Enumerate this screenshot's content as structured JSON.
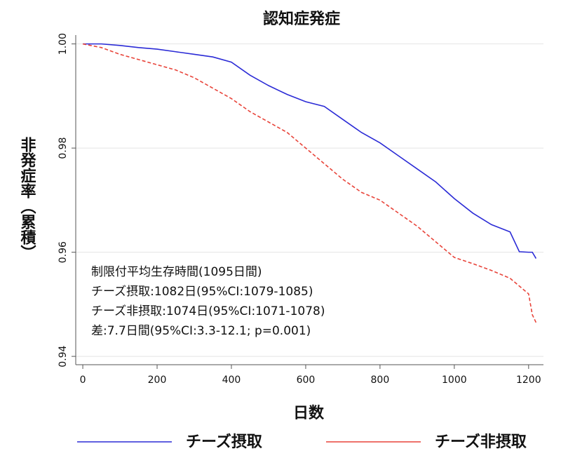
{
  "chart_data": {
    "type": "line",
    "title": "認知症発症",
    "x_label": "日数",
    "y_label": "非発症率（累積）",
    "x": [
      0,
      50,
      100,
      150,
      200,
      250,
      300,
      350,
      400,
      450,
      500,
      550,
      600,
      650,
      700,
      750,
      800,
      850,
      900,
      950,
      1000,
      1050,
      1100,
      1150,
      1175,
      1200,
      1210,
      1220
    ],
    "series": [
      {
        "name": "チーズ摂取",
        "color": "#2b2bd6",
        "line_style": "solid",
        "values": [
          1.0,
          1.0,
          0.9997,
          0.9993,
          0.999,
          0.9985,
          0.998,
          0.9975,
          0.9965,
          0.994,
          0.992,
          0.9903,
          0.9889,
          0.988,
          0.9855,
          0.983,
          0.981,
          0.9785,
          0.976,
          0.9735,
          0.9703,
          0.9675,
          0.9653,
          0.9639,
          0.9601,
          0.96,
          0.96,
          0.9588
        ]
      },
      {
        "name": "チーズ非摂取",
        "color": "#e8443a",
        "line_style": "dashed",
        "values": [
          1.0,
          0.9993,
          0.998,
          0.997,
          0.996,
          0.995,
          0.9935,
          0.9915,
          0.9895,
          0.987,
          0.985,
          0.983,
          0.98,
          0.977,
          0.974,
          0.9715,
          0.97,
          0.9675,
          0.965,
          0.962,
          0.959,
          0.9578,
          0.9565,
          0.955,
          0.9535,
          0.952,
          0.948,
          0.9465
        ]
      }
    ],
    "xlim": [
      -19,
      1240
    ],
    "ylim": [
      0.9384,
      1.0017
    ],
    "xticks": [
      0,
      200,
      400,
      600,
      800,
      1000,
      1200
    ],
    "yticks": [
      {
        "value": 1.0,
        "label": "1.00"
      },
      0.98,
      0.96,
      0.94
    ],
    "grid": true,
    "annotations": [
      "制限付平均生存時間(1095日間)",
      "チーズ摂取:1082日(95%CI:1079-1085)",
      "チーズ非摂取:1074日(95%CI:1071-1078)",
      "差:7.7日間(95%CI:3.3-12.1; p=0.001)"
    ],
    "legend": "bottom"
  }
}
